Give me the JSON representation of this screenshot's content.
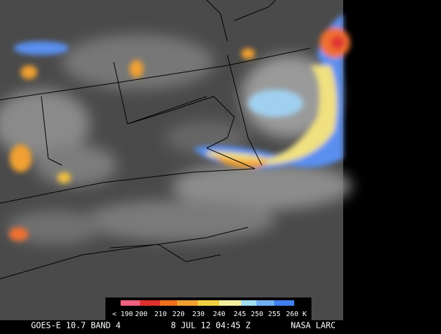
{
  "legend": {
    "labels": [
      "< 190",
      "200",
      "210",
      "220",
      "230",
      "240",
      "245",
      "250",
      "255",
      "260 K"
    ]
  },
  "footer": {
    "satellite": "GOES-E 10.7 BAND 4",
    "time": "8 JUL 12 04:45 Z",
    "credit": "NASA LARC"
  }
}
